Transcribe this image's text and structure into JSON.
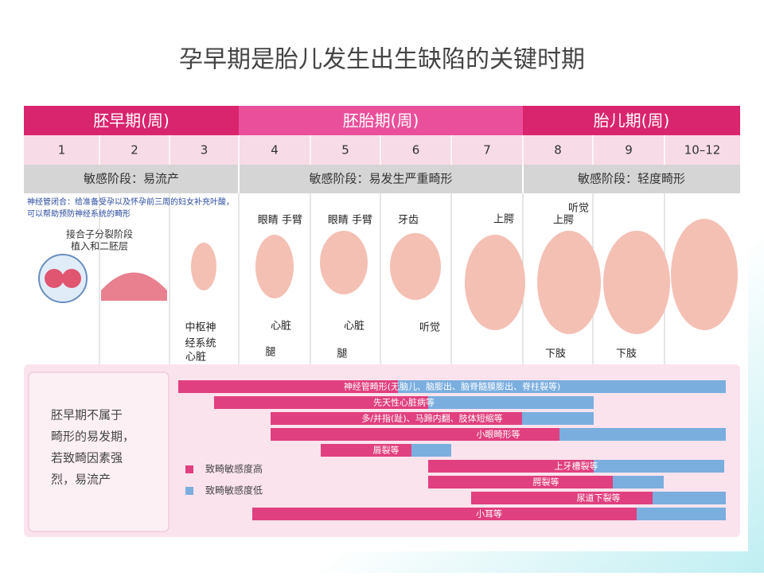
{
  "title": "孕早期是胎儿发生出生缺陷的关键时期",
  "header": {
    "periods": [
      "胚早期(周)",
      "胚胎期(周)",
      "胎儿期(周)"
    ],
    "weeks": [
      "1",
      "2",
      "3",
      "4",
      "5",
      "6",
      "7",
      "8",
      "9",
      "10–12"
    ],
    "sensitivity": [
      "敏感阶段：易流产",
      "敏感阶段：易发生严重畸形",
      "敏感阶段：轻度畸形"
    ]
  },
  "note": "神经管闭合：给准备受孕以及怀孕前三周的妇女补充叶酸，可以帮助预防神经系统的畸形",
  "stage_label": [
    "接合子分裂阶段",
    "植入和二胚层"
  ],
  "annotations": [
    "中枢神",
    "经系统",
    "心脏",
    "眼睛 手臂",
    "心脏",
    "腿",
    "眼睛 手臂",
    "心脏",
    "腿",
    "牙齿",
    "听觉",
    "上腭",
    "听觉",
    "上腭",
    "下肢",
    "下肢"
  ],
  "side_text": [
    "胚早期不属于",
    "畸形的易发期，",
    "若致畸因素强",
    "烈，易流产"
  ],
  "defects": [
    "神经管畸形(无脑儿、脑膨出、脑脊髓膜膨出、脊柱裂等)",
    "先天性心脏病等",
    "多/并指(趾)、马蹄内翻、肢体短缩等",
    "小眼畸形等",
    "唇裂等",
    "上牙槽裂等",
    "腭裂等",
    "尿道下裂等",
    "小耳等"
  ],
  "legend": [
    "致畸敏感度高",
    "致畸敏感度低"
  ]
}
